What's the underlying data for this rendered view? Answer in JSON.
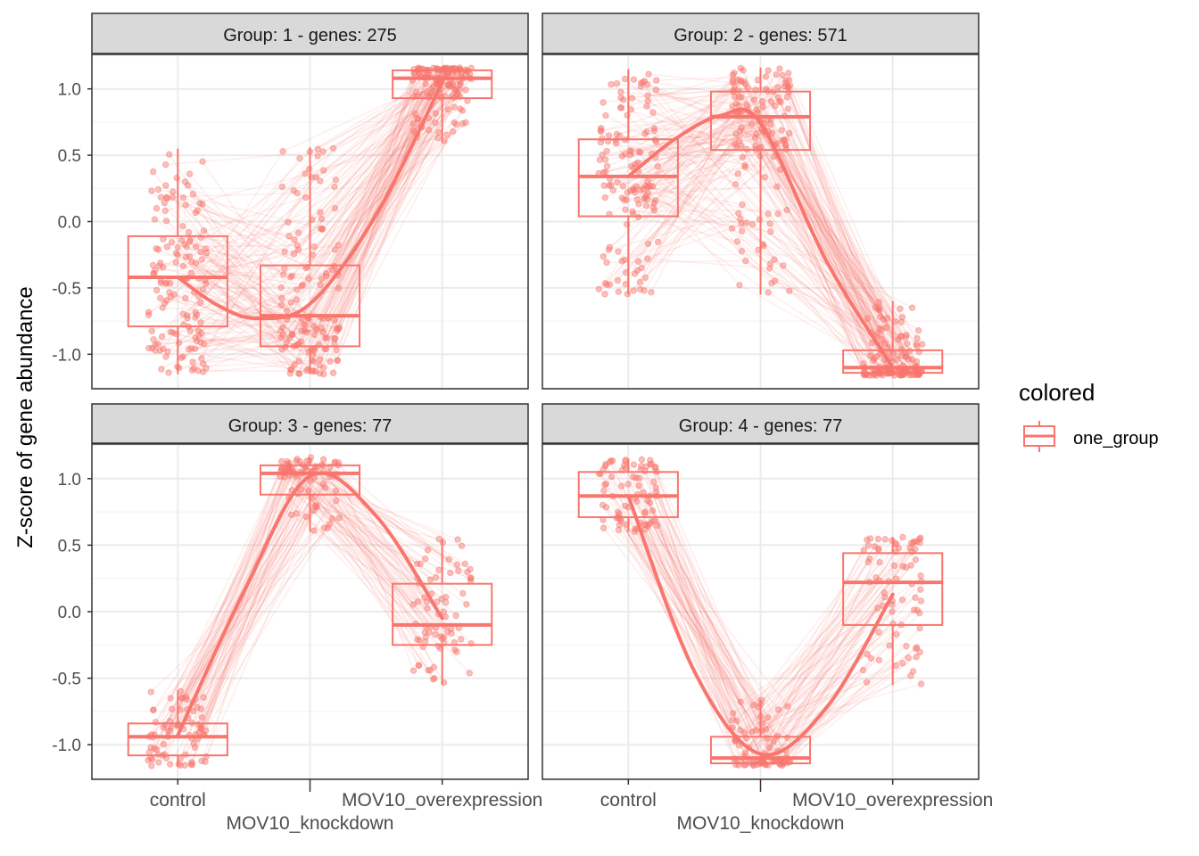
{
  "chart_data": {
    "type": "boxplot-with-jitter-and-trend",
    "ylabel": "Z-score of gene abundance",
    "xlabel": "",
    "ylim": [
      -1.26,
      1.26
    ],
    "yticks": [
      -1.0,
      -0.5,
      0.0,
      0.5,
      1.0
    ],
    "ytick_labels": [
      "-1.0",
      "-0.5",
      "0.0",
      "0.5",
      "1.0"
    ],
    "categories": [
      "control",
      "MOV10_knockdown",
      "MOV10_overexpression"
    ],
    "grid": true,
    "color": "#F8766D",
    "legend": {
      "title": "colored",
      "entries": [
        "one_group"
      ],
      "placement": "right"
    },
    "panels": [
      {
        "title": "Group:  1 - genes: 275",
        "genes": 275,
        "boxes": [
          {
            "low": -1.15,
            "q1": -0.79,
            "median": -0.42,
            "q3": -0.11,
            "high": 0.55
          },
          {
            "low": -1.15,
            "q1": -0.94,
            "median": -0.71,
            "q3": -0.33,
            "high": 0.56
          },
          {
            "low": 0.6,
            "q1": 0.93,
            "median": 1.08,
            "q3": 1.14,
            "high": 1.16
          }
        ],
        "trend": [
          [
            1,
            -0.42
          ],
          [
            1.3,
            -0.63
          ],
          [
            1.6,
            -0.73
          ],
          [
            2,
            -0.62
          ],
          [
            2.5,
            0.05
          ],
          [
            3,
            1.05
          ]
        ]
      },
      {
        "title": "Group:  2 - genes: 571",
        "genes": 571,
        "boxes": [
          {
            "low": -0.55,
            "q1": 0.04,
            "median": 0.34,
            "q3": 0.62,
            "high": 1.15
          },
          {
            "low": -0.55,
            "q1": 0.54,
            "median": 0.79,
            "q3": 0.98,
            "high": 1.16
          },
          {
            "low": -1.16,
            "q1": -1.14,
            "median": -1.1,
            "q3": -0.97,
            "high": -0.6
          }
        ],
        "trend": [
          [
            1,
            0.34
          ],
          [
            1.35,
            0.62
          ],
          [
            1.7,
            0.8
          ],
          [
            2,
            0.74
          ],
          [
            2.5,
            -0.3
          ],
          [
            3,
            -1.1
          ]
        ]
      },
      {
        "title": "Group:  3 - genes: 77",
        "genes": 77,
        "boxes": [
          {
            "low": -1.16,
            "q1": -1.08,
            "median": -0.94,
            "q3": -0.84,
            "high": -0.59
          },
          {
            "low": 0.6,
            "q1": 0.88,
            "median": 1.04,
            "q3": 1.1,
            "high": 1.16
          },
          {
            "low": -0.55,
            "q1": -0.25,
            "median": -0.1,
            "q3": 0.21,
            "high": 0.55
          }
        ],
        "trend": [
          [
            1,
            -0.93
          ],
          [
            1.5,
            0.15
          ],
          [
            2,
            1.02
          ],
          [
            2.5,
            0.72
          ],
          [
            3,
            -0.05
          ]
        ]
      },
      {
        "title": "Group:  4 - genes: 77",
        "genes": 77,
        "boxes": [
          {
            "low": 0.6,
            "q1": 0.71,
            "median": 0.87,
            "q3": 1.05,
            "high": 1.15
          },
          {
            "low": -1.16,
            "q1": -1.14,
            "median": -1.1,
            "q3": -0.94,
            "high": -0.66
          },
          {
            "low": -0.55,
            "q1": -0.1,
            "median": 0.22,
            "q3": 0.44,
            "high": 0.56
          }
        ],
        "trend": [
          [
            1,
            0.87
          ],
          [
            1.5,
            -0.45
          ],
          [
            2,
            -1.07
          ],
          [
            2.5,
            -0.72
          ],
          [
            3,
            0.13
          ]
        ]
      }
    ]
  }
}
